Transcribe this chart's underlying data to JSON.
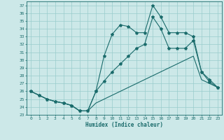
{
  "xlabel": "Humidex (Indice chaleur)",
  "bg_color": "#cce8e8",
  "grid_color": "#99cccc",
  "line_color": "#1a6b6b",
  "xlim": [
    -0.5,
    23.5
  ],
  "ylim": [
    23,
    37.5
  ],
  "yticks": [
    23,
    24,
    25,
    26,
    27,
    28,
    29,
    30,
    31,
    32,
    33,
    34,
    35,
    36,
    37
  ],
  "xticks": [
    0,
    1,
    2,
    3,
    4,
    5,
    6,
    7,
    8,
    9,
    10,
    11,
    12,
    13,
    14,
    15,
    16,
    17,
    18,
    19,
    20,
    21,
    22,
    23
  ],
  "line1_x": [
    0,
    1,
    2,
    3,
    4,
    5,
    6,
    7,
    8,
    9,
    10,
    11,
    12,
    13,
    14,
    15,
    16,
    17,
    18,
    19,
    20,
    21,
    22,
    23
  ],
  "line1_y": [
    26.0,
    25.5,
    25.0,
    24.7,
    24.5,
    24.2,
    23.5,
    23.5,
    26.0,
    30.5,
    33.3,
    34.5,
    34.3,
    33.5,
    33.5,
    37.0,
    35.5,
    33.5,
    33.5,
    33.5,
    33.0,
    28.5,
    27.2,
    26.5
  ],
  "line2_x": [
    0,
    1,
    2,
    3,
    4,
    5,
    6,
    7,
    8,
    9,
    10,
    11,
    12,
    13,
    14,
    15,
    16,
    17,
    18,
    19,
    20,
    21,
    22,
    23
  ],
  "line2_y": [
    26.0,
    25.5,
    25.0,
    24.7,
    24.5,
    24.2,
    23.5,
    23.5,
    26.0,
    27.3,
    28.5,
    29.5,
    30.5,
    31.5,
    32.0,
    35.5,
    34.0,
    31.5,
    31.5,
    31.5,
    32.5,
    28.5,
    27.5,
    26.5
  ],
  "line3_x": [
    0,
    1,
    2,
    3,
    4,
    5,
    6,
    7,
    8,
    9,
    10,
    11,
    12,
    13,
    14,
    15,
    16,
    17,
    18,
    19,
    20,
    21,
    22,
    23
  ],
  "line3_y": [
    26.0,
    25.5,
    25.0,
    24.7,
    24.5,
    24.2,
    23.5,
    23.5,
    24.5,
    25.0,
    25.5,
    26.0,
    26.5,
    27.0,
    27.5,
    28.0,
    28.5,
    29.0,
    29.5,
    30.0,
    30.5,
    27.5,
    27.0,
    26.5
  ]
}
